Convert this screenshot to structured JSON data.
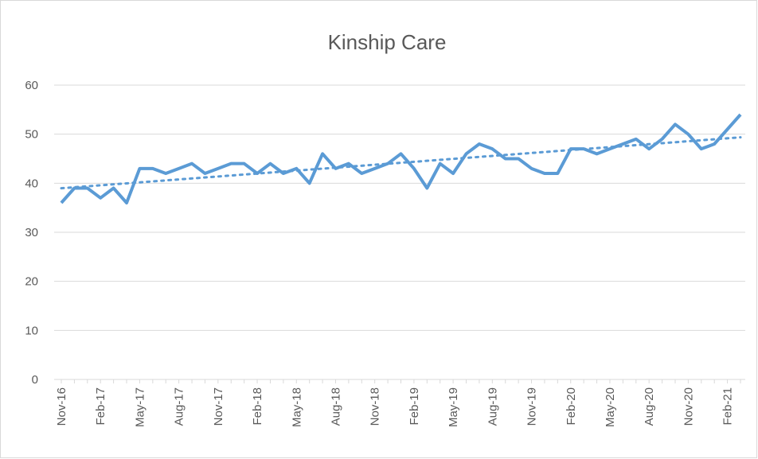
{
  "chart_data": {
    "type": "line",
    "title": "Kinship Care",
    "categories": [
      "Nov-16",
      null,
      null,
      "Feb-17",
      null,
      null,
      "May-17",
      null,
      null,
      "Aug-17",
      null,
      null,
      "Nov-17",
      null,
      null,
      "Feb-18",
      null,
      null,
      "May-18",
      null,
      null,
      "Aug-18",
      null,
      null,
      "Nov-18",
      null,
      null,
      "Feb-19",
      null,
      null,
      "May-19",
      null,
      null,
      "Aug-19",
      null,
      null,
      "Nov-19",
      null,
      null,
      "Feb-20",
      null,
      null,
      "May-20",
      null,
      null,
      "Aug-20",
      null,
      null,
      "Nov-20",
      null,
      null,
      "Feb-21",
      null
    ],
    "series": [
      {
        "color": "#5b9bd5",
        "values": [
          36,
          39,
          39,
          37,
          39,
          36,
          43,
          43,
          42,
          43,
          44,
          42,
          43,
          44,
          44,
          42,
          44,
          42,
          43,
          40,
          46,
          43,
          44,
          42,
          43,
          44,
          46,
          43,
          39,
          44,
          42,
          46,
          48,
          47,
          45,
          45,
          43,
          42,
          42,
          47,
          47,
          46,
          47,
          48,
          49,
          47,
          49,
          52,
          50,
          47,
          48,
          51,
          54
        ]
      }
    ],
    "trendline": "linear",
    "ylim": [
      0,
      60
    ],
    "yticks": [
      0,
      10,
      20,
      30,
      40,
      50,
      60
    ],
    "grid": true
  }
}
